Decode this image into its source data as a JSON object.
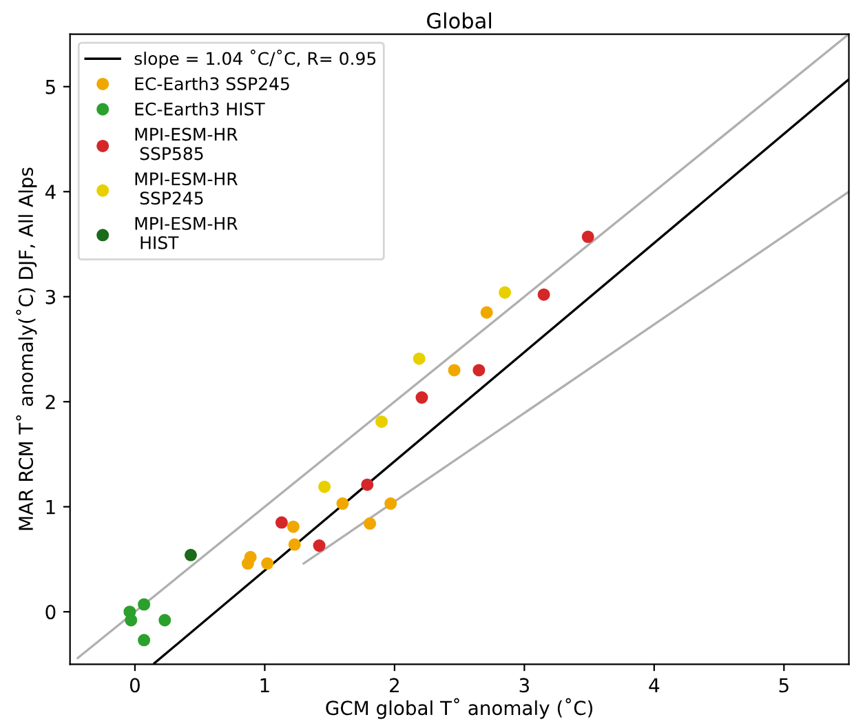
{
  "chart_data": {
    "type": "scatter",
    "title": "Global",
    "xlabel": "GCM global T˚ anomaly (˚C)",
    "ylabel": "MAR RCM T˚ anomaly(˚C) DJF, All Alps",
    "xlim": [
      -0.5,
      5.5
    ],
    "ylim": [
      -0.5,
      5.5
    ],
    "xticks": [
      0,
      1,
      2,
      3,
      4,
      5
    ],
    "yticks": [
      0,
      1,
      2,
      3,
      4,
      5
    ],
    "grid": false,
    "legend": "top left",
    "marker": "circle",
    "series": [
      {
        "type": "line",
        "name": "slope = 1.04 ˚C/˚C, R= 0.95",
        "color": "#000000",
        "marker": "none",
        "x": [
          0.15,
          5.5
        ],
        "values": [
          -0.49,
          5.07
        ]
      },
      {
        "type": "line",
        "marker": "none",
        "color": "#b0b0b0",
        "x": [
          -0.44,
          5.5
        ],
        "values": [
          -0.44,
          5.5
        ]
      },
      {
        "type": "line",
        "marker": "none",
        "color": "#b0b0b0",
        "x": [
          1.3,
          5.5
        ],
        "values": [
          0.46,
          4.0
        ]
      },
      {
        "name": "EC-Earth3 SSP245",
        "color": "#f0a800",
        "x": [
          0.87,
          0.89,
          1.02,
          1.22,
          1.23,
          1.6,
          1.81,
          1.97,
          2.46,
          2.71
        ],
        "values": [
          0.46,
          0.52,
          0.46,
          0.81,
          0.64,
          1.03,
          0.84,
          1.03,
          2.3,
          2.85
        ]
      },
      {
        "name": "EC-Earth3 HIST",
        "color": "#2ca02c",
        "x": [
          -0.04,
          -0.03,
          0.07,
          0.23,
          0.07
        ],
        "values": [
          0.0,
          -0.08,
          0.07,
          -0.08,
          -0.27
        ]
      },
      {
        "name": "MPI-ESM-HR\n SSP585",
        "color": "#d62728",
        "x": [
          1.13,
          1.42,
          1.79,
          2.21,
          2.65,
          3.15,
          3.49
        ],
        "values": [
          0.85,
          0.63,
          1.21,
          2.04,
          2.3,
          3.02,
          3.57
        ]
      },
      {
        "name": "MPI-ESM-HR\n SSP245",
        "color": "#e8d000",
        "x": [
          1.46,
          1.9,
          2.19,
          2.85
        ],
        "values": [
          1.19,
          1.81,
          2.41,
          3.04
        ]
      },
      {
        "name": "MPI-ESM-HR\n HIST",
        "color": "#1a6b1a",
        "x": [
          0.43
        ],
        "values": [
          0.54
        ]
      }
    ]
  }
}
